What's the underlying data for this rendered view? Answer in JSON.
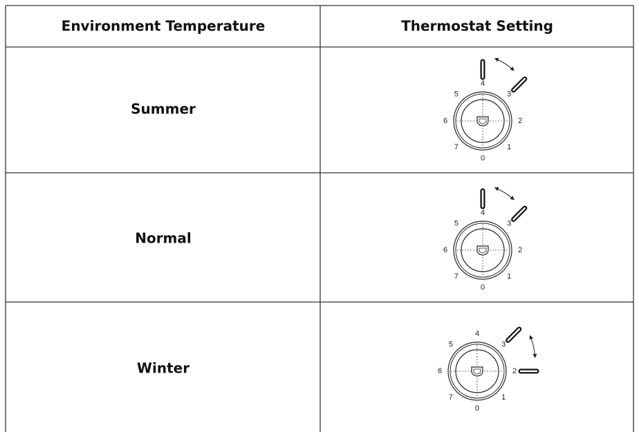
{
  "table": {
    "headers": [
      "Environment Temperature",
      "Thermostat Setting"
    ],
    "rows": [
      {
        "label": "Summer",
        "dial": [
          "0",
          "1",
          "2",
          "3",
          "4",
          "5",
          "6",
          "7"
        ]
      },
      {
        "label": "Normal",
        "dial": [
          "0",
          "1",
          "2",
          "3",
          "4",
          "5",
          "6",
          "7"
        ]
      },
      {
        "label": "Winter",
        "dial": [
          "0",
          "1",
          "2",
          "3",
          "4",
          "5",
          "6",
          "7"
        ]
      }
    ]
  }
}
